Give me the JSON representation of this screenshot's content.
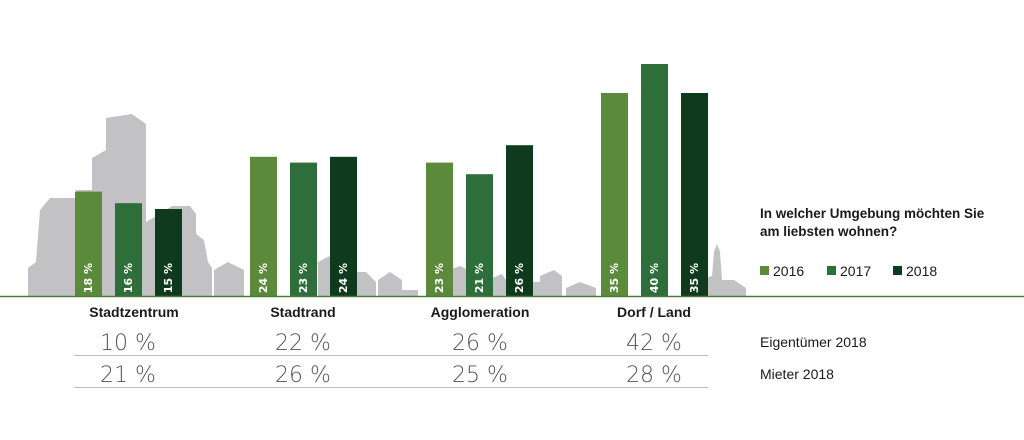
{
  "chart_data": {
    "type": "bar",
    "question": "In welcher Umgebung möchten Sie am liebsten wohnen?",
    "categories": [
      "Stadtzentrum",
      "Stadtrand",
      "Agglomeration",
      "Dorf / Land"
    ],
    "series": [
      {
        "name": "2016",
        "color": "#5a8a3a",
        "values": [
          18,
          24,
          23,
          35
        ]
      },
      {
        "name": "2017",
        "color": "#2e6e3a",
        "values": [
          16,
          23,
          21,
          40
        ]
      },
      {
        "name": "2018",
        "color": "#0f3a1e",
        "values": [
          15,
          24,
          26,
          35
        ]
      }
    ],
    "unit": "%",
    "legend_position": "right",
    "ylim": [
      0,
      40
    ],
    "table": {
      "rows": [
        {
          "label": "Eigentümer 2018",
          "values": [
            "10 %",
            "22 %",
            "26 %",
            "42 %"
          ]
        },
        {
          "label": "Mieter 2018",
          "values": [
            "21 %",
            "26 %",
            "25 %",
            "28 %"
          ]
        }
      ]
    }
  },
  "colors": {
    "skyline": "#c2c2c4",
    "baseline": "#4a7a3a",
    "divider": "#bbbbbb"
  }
}
